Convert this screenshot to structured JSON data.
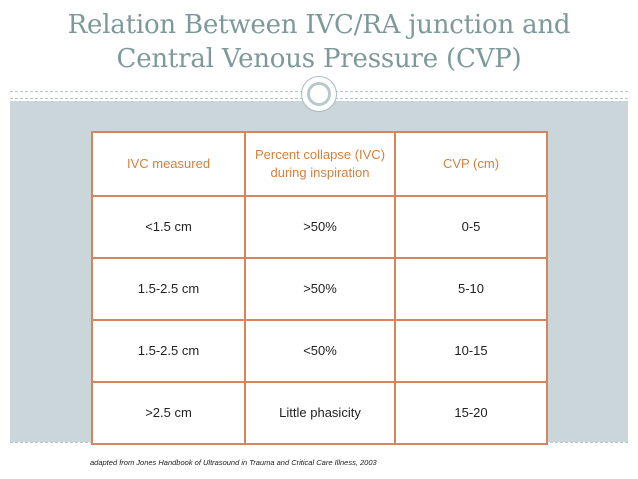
{
  "slide": {
    "title_line1": "Relation Between IVC/RA junction and",
    "title_line2": "Central Venous Pressure (CVP)",
    "footnote": "adapted from Jones Handbook of Ultrasound in Trauma and Critical Care Illness, 2003"
  },
  "colors": {
    "title": "#7d999a",
    "content_background": "#cad6d9",
    "table_border": "#d6855d",
    "header_text": "#d4803d"
  },
  "table": {
    "headers": [
      "IVC measured",
      "Percent collapse (IVC) during inspiration",
      "CVP (cm)"
    ],
    "rows": [
      [
        "<1.5 cm",
        ">50%",
        "0-5"
      ],
      [
        "1.5-2.5 cm",
        ">50%",
        "5-10"
      ],
      [
        "1.5-2.5 cm",
        "<50%",
        "10-15"
      ],
      [
        ">2.5 cm",
        "Little phasicity",
        "15-20"
      ]
    ]
  }
}
